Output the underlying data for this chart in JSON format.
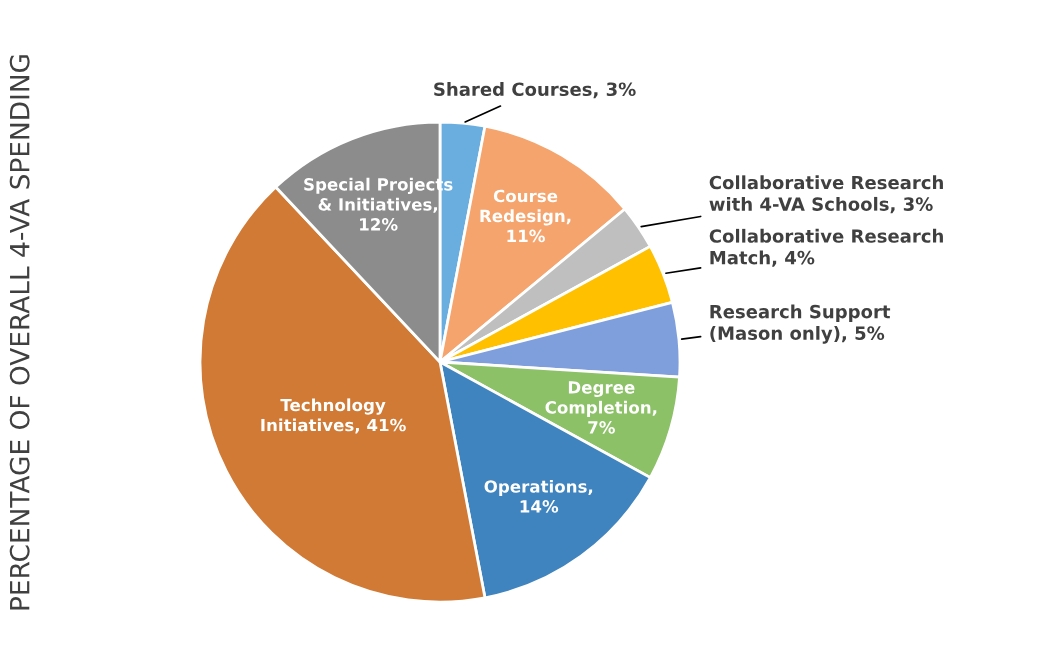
{
  "chart_data": {
    "type": "pie",
    "ylabel": "PERCENTAGE OF OVERALL 4-VA SPENDING",
    "categories": [
      "Shared Courses, 3%",
      "Course\nRedesign,\n11%",
      "Collaborative Research\nwith 4-VA Schools, 3%",
      "Collaborative Research\nMatch, 4%",
      "Research Support\n(Mason only), 5%",
      "Degree\nCompletion,\n7%",
      "Operations,\n14%",
      "Technology\nInitiatives, 41%",
      "Special Projects\n& Initiatives,\n12%"
    ],
    "values": [
      3,
      11,
      3,
      4,
      5,
      7,
      14,
      41,
      12
    ],
    "colors": [
      "#6aaee0",
      "#f4a46c",
      "#bfbfbf",
      "#ffc000",
      "#7f9fdc",
      "#8cc168",
      "#3f84be",
      "#d07a35",
      "#8c8c8c"
    ]
  }
}
